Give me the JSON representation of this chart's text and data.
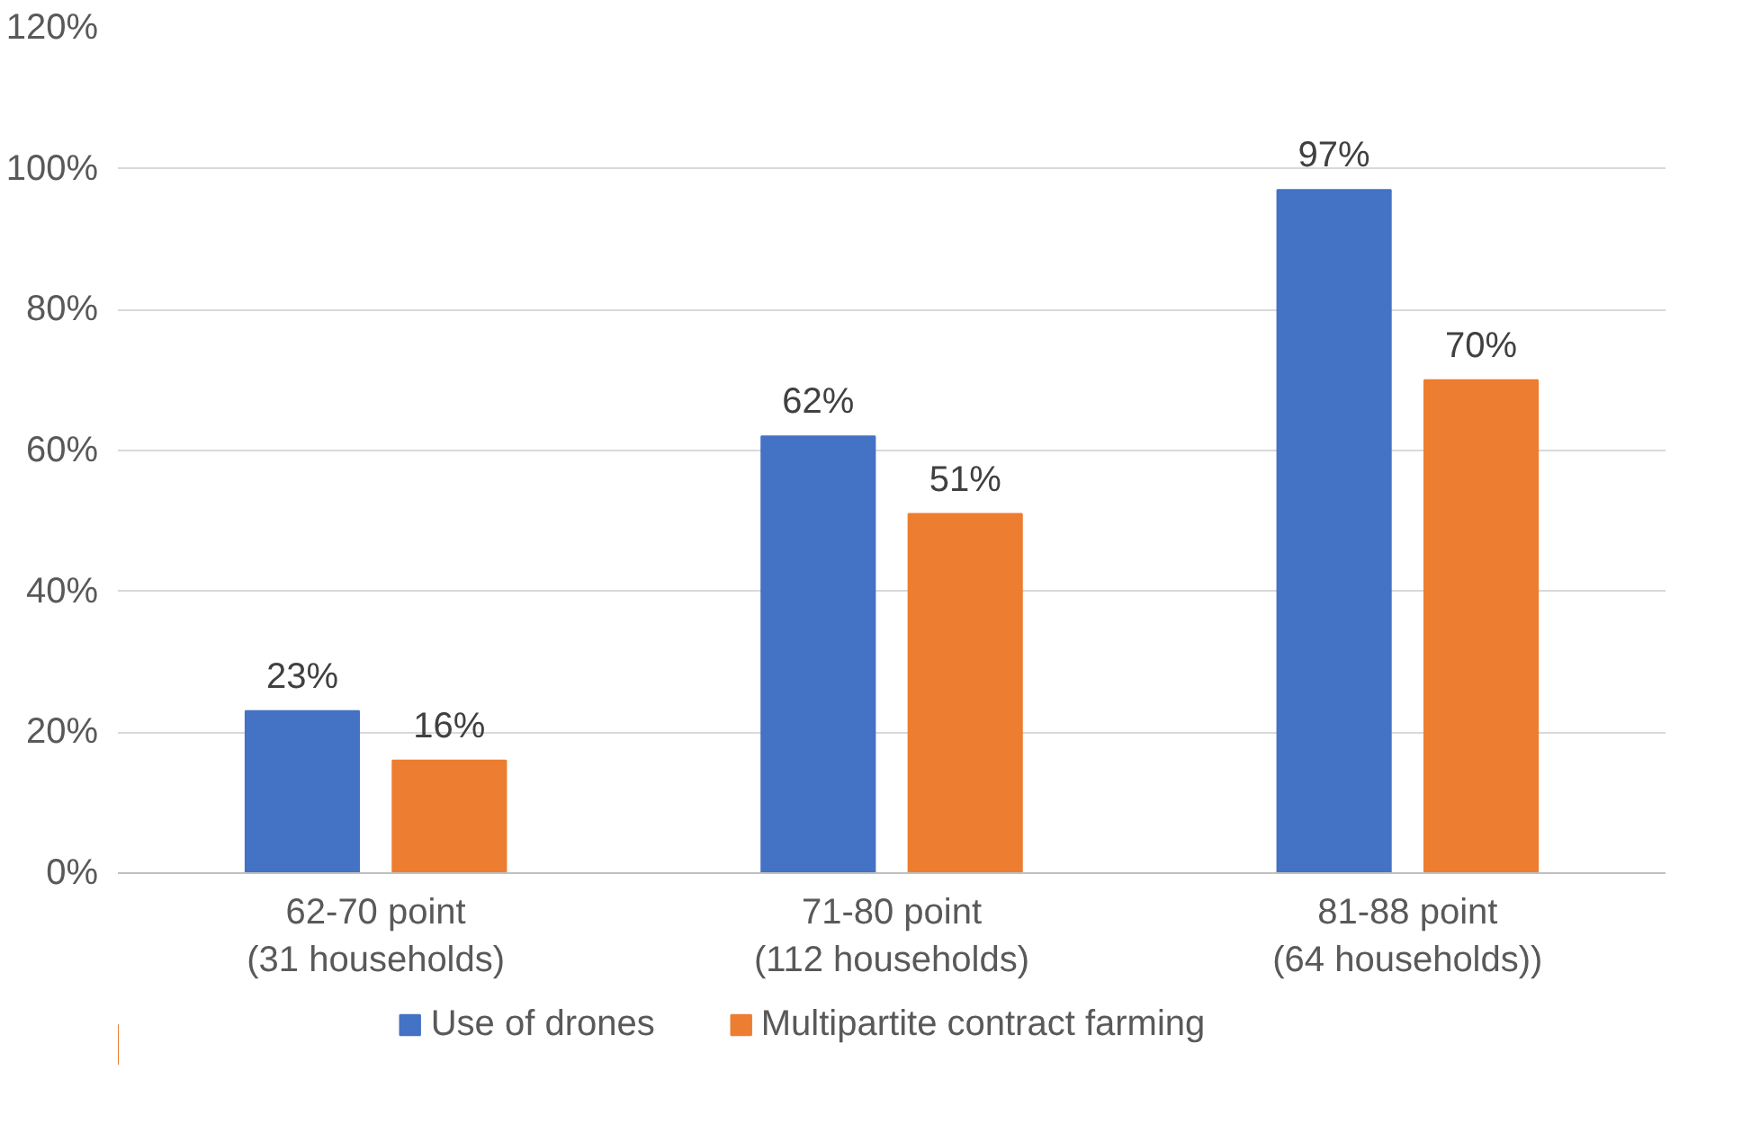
{
  "chart_data": {
    "type": "bar",
    "categories": [
      "62-70 point\n(31 households)",
      "71-80 point\n(112 households)",
      "81-88 point\n(64 households))"
    ],
    "series": [
      {
        "name": "Use of drones",
        "color": "#4472c4",
        "values": [
          23,
          62,
          97
        ]
      },
      {
        "name": "Multipartite contract farming",
        "color": "#ed7d31",
        "values": [
          16,
          51,
          70
        ]
      }
    ],
    "ylim": [
      0,
      120
    ],
    "yticks": [
      {
        "value": 0,
        "label": "0%"
      },
      {
        "value": 20,
        "label": "20%"
      },
      {
        "value": 40,
        "label": "40%"
      },
      {
        "value": 60,
        "label": "60%"
      },
      {
        "value": 80,
        "label": "80%"
      },
      {
        "value": 100,
        "label": "100%"
      },
      {
        "value": 120,
        "label": "120%"
      }
    ],
    "value_labels": [
      [
        "23%",
        "62%",
        "97%"
      ],
      [
        "16%",
        "51%",
        "70%"
      ]
    ],
    "grid": "y",
    "legend": "bottom"
  }
}
